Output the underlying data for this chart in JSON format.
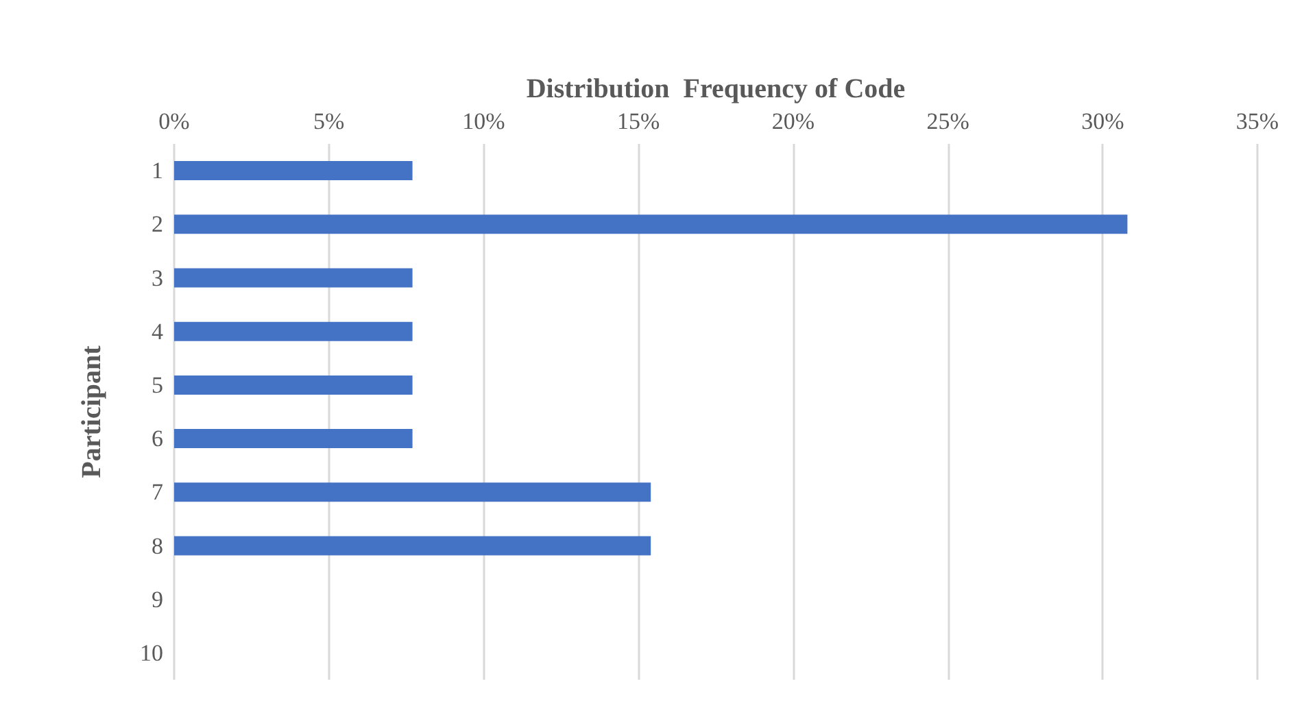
{
  "chart_data": {
    "type": "bar",
    "orientation": "horizontal",
    "xlabel": "Distribution  Frequency of Code",
    "ylabel": "Participant",
    "categories": [
      "1",
      "2",
      "3",
      "4",
      "5",
      "6",
      "7",
      "8",
      "9",
      "10"
    ],
    "values": [
      7.7,
      30.8,
      7.7,
      7.7,
      7.7,
      7.7,
      15.4,
      15.4,
      0,
      0
    ],
    "color": "#4472c4",
    "xlim": [
      0,
      35
    ],
    "xticks": [
      {
        "value": 0,
        "label": "0%"
      },
      {
        "value": 5,
        "label": "5%"
      },
      {
        "value": 10,
        "label": "10%"
      },
      {
        "value": 15,
        "label": "15%"
      },
      {
        "value": 20,
        "label": "20%"
      },
      {
        "value": 25,
        "label": "25%"
      },
      {
        "value": 30,
        "label": "30%"
      },
      {
        "value": 35,
        "label": "35%"
      }
    ],
    "grid": "x"
  }
}
